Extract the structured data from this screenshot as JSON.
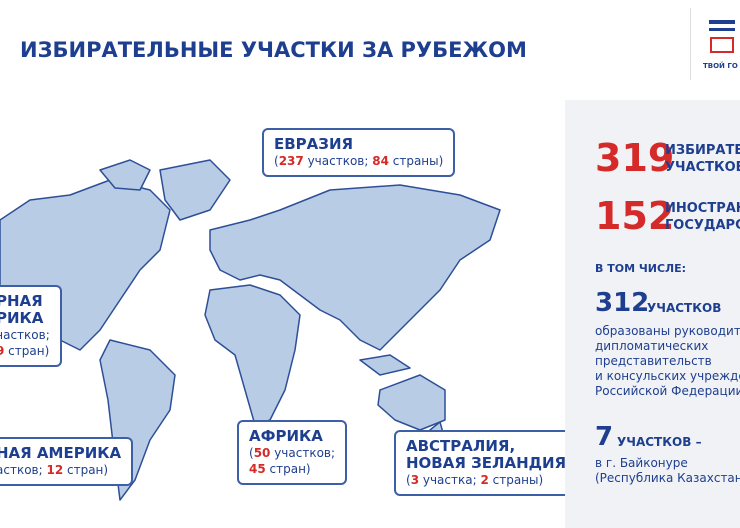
{
  "header": {
    "title": "ИЗБИРАТЕЛЬНЫЕ УЧАСТКИ ЗА РУБЕЖОМ",
    "logo_text": "ТВОЙ ГО"
  },
  "callouts": [
    {
      "title": [
        "ЕВРАЗИЯ"
      ],
      "detail": [
        [
          {
            "text": "(",
            "color": "#1e3f8f"
          },
          {
            "text": "237",
            "color": "#d42a2a"
          },
          {
            "text": " участков; ",
            "color": "#1e3f8f"
          },
          {
            "text": "84",
            "color": "#d42a2a"
          },
          {
            "text": " страны)",
            "color": "#1e3f8f"
          }
        ]
      ]
    },
    {
      "title": [
        "РНАЯ",
        "РИКА"
      ],
      "detail": [
        [
          {
            "text": "частков;",
            "color": "#1e3f8f"
          }
        ],
        [
          {
            "text": "9",
            "color": "#d42a2a"
          },
          {
            "text": " стран)",
            "color": "#1e3f8f"
          }
        ]
      ]
    },
    {
      "title": [
        "НАЯ АМЕРИКА"
      ],
      "detail": [
        [
          {
            "text": "астков; ",
            "color": "#1e3f8f"
          },
          {
            "text": "12",
            "color": "#d42a2a"
          },
          {
            "text": " стран)",
            "color": "#1e3f8f"
          }
        ]
      ]
    },
    {
      "title": [
        "АФРИКА"
      ],
      "detail": [
        [
          {
            "text": "(",
            "color": "#1e3f8f"
          },
          {
            "text": "50",
            "color": "#d42a2a"
          },
          {
            "text": " участков;",
            "color": "#1e3f8f"
          }
        ],
        [
          {
            "text": "45",
            "color": "#d42a2a"
          },
          {
            "text": " стран)",
            "color": "#1e3f8f"
          }
        ]
      ]
    },
    {
      "title": [
        "АВСТРАЛИЯ,",
        "НОВАЯ ЗЕЛАНДИЯ"
      ],
      "detail": [
        [
          {
            "text": "(",
            "color": "#1e3f8f"
          },
          {
            "text": "3",
            "color": "#d42a2a"
          },
          {
            "text": " участка; ",
            "color": "#1e3f8f"
          },
          {
            "text": "2",
            "color": "#d42a2a"
          },
          {
            "text": " страны)",
            "color": "#1e3f8f"
          }
        ]
      ]
    }
  ],
  "stats": {
    "total_stations": {
      "number": "319",
      "label": [
        "ИЗБИРАТЕЛ",
        "УЧАСТКОВ"
      ]
    },
    "countries": {
      "number": "152",
      "label": [
        "ИНОСТРАНН",
        "ГОСУДАРСТ"
      ]
    },
    "including": "В ТОМ ЧИСЛЕ:",
    "diplomatic": {
      "number": "312",
      "label": "УЧАСТКОВ",
      "text": [
        "образованы руководител",
        "дипломатических",
        "представительств",
        "и консульских учрежден",
        "Российской Федерации"
      ]
    },
    "baikonur": {
      "number": "7",
      "label": "УЧАСТКОВ –",
      "text": [
        "в г. Байконуре",
        "(Республика Казахстан)"
      ]
    }
  }
}
